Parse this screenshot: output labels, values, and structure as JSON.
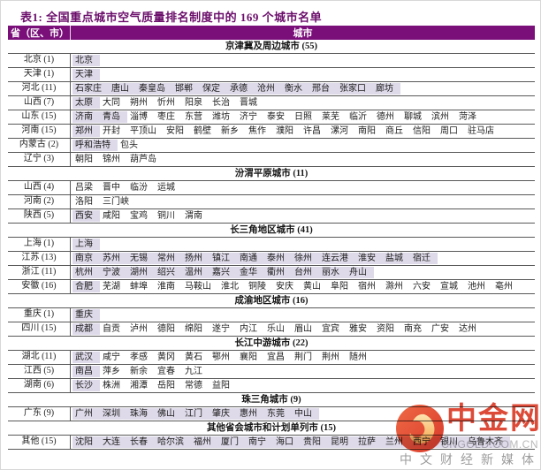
{
  "title": "表1: 全国重点城市空气质量排名制度中的 169 个城市名单",
  "colors": {
    "header_bg": "#7a0f7a",
    "title_text": "#6b0e6b",
    "highlight_bg": "#dfdae9",
    "grid_line": "#585858",
    "watermark_red": "#dd4b38"
  },
  "header": {
    "province": "省（区、市）",
    "city": "城市"
  },
  "sections": [
    {
      "title": "京津冀及周边城市 (55)",
      "rows": [
        {
          "province": "北京 (1)",
          "highlighted": [
            "北京"
          ],
          "normal": []
        },
        {
          "province": "天津 (1)",
          "highlighted": [
            "天津"
          ],
          "normal": []
        },
        {
          "province": "河北 (11)",
          "highlighted": [
            "石家庄",
            "唐山",
            "秦皇岛",
            "邯郸",
            "保定",
            "承德",
            "沧州",
            "衡水",
            "邢台",
            "张家口",
            "廊坊"
          ],
          "normal": []
        },
        {
          "province": "山西 (7)",
          "highlighted": [
            "太原"
          ],
          "normal": [
            "大同",
            "朔州",
            "忻州",
            "阳泉",
            "长治",
            "晋城"
          ]
        },
        {
          "province": "山东 (15)",
          "highlighted": [
            "济南",
            "青岛"
          ],
          "normal": [
            "淄博",
            "枣庄",
            "东营",
            "潍坊",
            "济宁",
            "泰安",
            "日照",
            "莱芜",
            "临沂",
            "德州",
            "聊城",
            "滨州",
            "菏泽"
          ]
        },
        {
          "province": "河南 (15)",
          "highlighted": [
            "郑州"
          ],
          "normal": [
            "开封",
            "平顶山",
            "安阳",
            "鹤壁",
            "新乡",
            "焦作",
            "濮阳",
            "许昌",
            "漯河",
            "南阳",
            "商丘",
            "信阳",
            "周口",
            "驻马店"
          ]
        },
        {
          "province": "内蒙古 (2)",
          "highlighted": [
            "呼和浩特"
          ],
          "normal": [
            "包头"
          ]
        },
        {
          "province": "辽宁 (3)",
          "highlighted": [],
          "normal": [
            "朝阳",
            "锦州",
            "葫芦岛"
          ]
        }
      ]
    },
    {
      "title": "汾渭平原城市 (11)",
      "rows": [
        {
          "province": "山西 (4)",
          "highlighted": [],
          "normal": [
            "吕梁",
            "晋中",
            "临汾",
            "运城"
          ]
        },
        {
          "province": "河南 (2)",
          "highlighted": [],
          "normal": [
            "洛阳",
            "三门峡"
          ]
        },
        {
          "province": "陕西 (5)",
          "highlighted": [
            "西安"
          ],
          "normal": [
            "咸阳",
            "宝鸡",
            "铜川",
            "渭南"
          ]
        }
      ]
    },
    {
      "title": "长三角地区城市 (41)",
      "rows": [
        {
          "province": "上海 (1)",
          "highlighted": [
            "上海"
          ],
          "normal": []
        },
        {
          "province": "江苏 (13)",
          "highlighted": [
            "南京",
            "苏州",
            "无锡",
            "常州",
            "扬州",
            "镇江",
            "南通",
            "泰州",
            "徐州",
            "连云港",
            "淮安",
            "盐城",
            "宿迁"
          ],
          "normal": []
        },
        {
          "province": "浙江 (11)",
          "highlighted": [
            "杭州",
            "宁波",
            "湖州",
            "绍兴",
            "温州",
            "嘉兴",
            "金华",
            "衢州",
            "台州",
            "丽水",
            "舟山"
          ],
          "normal": []
        },
        {
          "province": "安徽 (16)",
          "highlighted": [
            "合肥"
          ],
          "normal": [
            "芜湖",
            "蚌埠",
            "淮南",
            "马鞍山",
            "淮北",
            "铜陵",
            "安庆",
            "黄山",
            "阜阳",
            "宿州",
            "滁州",
            "六安",
            "宣城",
            "池州",
            "亳州"
          ]
        }
      ]
    },
    {
      "title": "成渝地区城市 (16)",
      "rows": [
        {
          "province": "重庆 (1)",
          "highlighted": [
            "重庆"
          ],
          "normal": []
        },
        {
          "province": "四川 (15)",
          "highlighted": [
            "成都"
          ],
          "normal": [
            "自贡",
            "泸州",
            "德阳",
            "绵阳",
            "遂宁",
            "内江",
            "乐山",
            "眉山",
            "宜宾",
            "雅安",
            "资阳",
            "南充",
            "广安",
            "达州"
          ]
        }
      ]
    },
    {
      "title": "长江中游城市 (22)",
      "rows": [
        {
          "province": "湖北 (11)",
          "highlighted": [
            "武汉"
          ],
          "normal": [
            "咸宁",
            "孝感",
            "黄冈",
            "黄石",
            "鄂州",
            "襄阳",
            "宜昌",
            "荆门",
            "荆州",
            "随州"
          ]
        },
        {
          "province": "江西 (5)",
          "highlighted": [
            "南昌"
          ],
          "normal": [
            "萍乡",
            "新余",
            "宜春",
            "九江"
          ]
        },
        {
          "province": "湖南 (6)",
          "highlighted": [
            "长沙"
          ],
          "normal": [
            "株洲",
            "湘潭",
            "岳阳",
            "常德",
            "益阳"
          ]
        }
      ]
    },
    {
      "title": "珠三角城市 (9)",
      "rows": [
        {
          "province": "广东 (9)",
          "highlighted": [
            "广州",
            "深圳",
            "珠海",
            "佛山",
            "江门",
            "肇庆",
            "惠州",
            "东莞",
            "中山"
          ],
          "normal": []
        }
      ]
    },
    {
      "title": "其他省会城市和计划单列市 (15)",
      "rows": [
        {
          "province": "其他 (15)",
          "highlighted": [
            "沈阳",
            "大连",
            "长春",
            "哈尔滨",
            "福州",
            "厦门",
            "南宁",
            "海口",
            "贵阳",
            "昆明",
            "拉萨",
            "兰州",
            "西宁",
            "银川",
            "乌鲁木齐"
          ],
          "normal": []
        }
      ]
    }
  ],
  "watermark": {
    "name": "中金网",
    "domain": "CNGOLD.COM.CN",
    "tagline": "中文财经新媒体"
  }
}
